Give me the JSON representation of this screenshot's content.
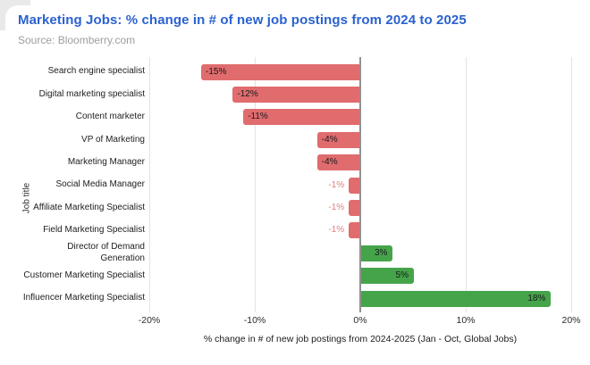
{
  "header": {
    "title": "Marketing Jobs: % change in # of new job postings from 2024 to 2025",
    "source": "Source: Bloomberry.com"
  },
  "colors": {
    "negative_bar": "#e06c6e",
    "positive_bar": "#45a44a",
    "negative_outside_label": "#e27d7f",
    "title_blue": "#2a62d0",
    "gridline": "#e3e3e3",
    "zero_line": "#919191"
  },
  "chart_data": {
    "type": "bar",
    "orientation": "horizontal",
    "title": "Marketing Jobs: % change in # of new job postings from 2024 to 2025",
    "subtitle": "Source: Bloomberry.com",
    "categories": [
      "Search engine specialist",
      "Digital marketing specialist",
      "Content marketer",
      "VP of Marketing",
      "Marketing Manager",
      "Social Media Manager",
      "Affiliate Marketing Specialist",
      "Field Marketing Specialist",
      "Director of Demand\nGeneration",
      "Customer Marketing Specialist",
      "Influencer Marketing Specialist"
    ],
    "values": [
      -15,
      -12,
      -11,
      -4,
      -4,
      -1,
      -1,
      -1,
      3,
      5,
      18
    ],
    "value_labels": [
      "-15%",
      "-12%",
      "-11%",
      "-4%",
      "-4%",
      "-1%",
      "-1%",
      "-1%",
      "3%",
      "5%",
      "18%"
    ],
    "xlabel": "% change in # of new job postings from 2024-2025 (Jan - Oct, Global Jobs)",
    "ylabel": "Job title",
    "xlim": [
      -20,
      20
    ],
    "xticks": [
      -20,
      -10,
      0,
      10,
      20
    ],
    "xtick_labels": [
      "-20%",
      "-10%",
      "0%",
      "10%",
      "20%"
    ],
    "grid": true,
    "legend": "none"
  }
}
